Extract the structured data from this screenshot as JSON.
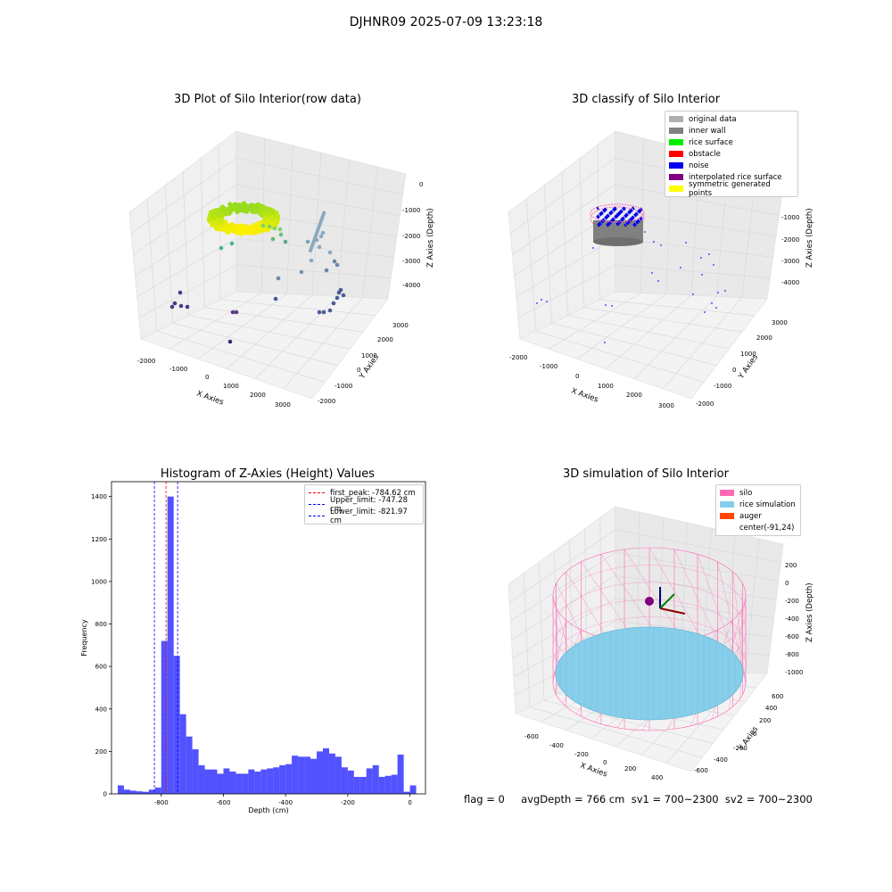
{
  "figure_title": "DJHNR09 2025-07-09 13:23:18",
  "panels": {
    "raw": {
      "title": "3D Plot of Silo Interior(row data)",
      "xlabel": "X Axies",
      "ylabel": "Y Axies",
      "zlabel": "Z Axies (Depth)",
      "xticks": [
        "-2000",
        "-1000",
        "0",
        "1000",
        "2000",
        "3000"
      ],
      "yticks": [
        "-2000",
        "-1000",
        "0",
        "1000",
        "2000",
        "3000"
      ],
      "zticks": [
        "0",
        "-1000",
        "-2000",
        "-3000",
        "-4000"
      ]
    },
    "classify": {
      "title": "3D classify of Silo Interior",
      "xlabel": "X Axies",
      "ylabel": "Y Axies",
      "zlabel": "Z Axies (Depth)",
      "xticks": [
        "-2000",
        "-1000",
        "0",
        "1000",
        "2000",
        "3000"
      ],
      "yticks": [
        "-2000",
        "-1000",
        "0",
        "1000",
        "2000",
        "3000"
      ],
      "zticks": [
        "-1000",
        "-2000",
        "-3000",
        "-4000"
      ],
      "legend": [
        {
          "label": "original data",
          "color": "#b0b0b0"
        },
        {
          "label": "inner wall",
          "color": "#808080"
        },
        {
          "label": "rice surface",
          "color": "#00ee00"
        },
        {
          "label": "obstacle",
          "color": "#ff0000"
        },
        {
          "label": "noise",
          "color": "#0000ee"
        },
        {
          "label": "interpolated rice surface",
          "color": "#800080"
        },
        {
          "label": "symmetric generated points",
          "color": "#ffff00"
        }
      ]
    },
    "simulation": {
      "title": "3D simulation of Silo Interior",
      "xlabel": "X Axies",
      "ylabel": "Y Axies",
      "zlabel": "Z Axies (Depth)",
      "xticks": [
        "-600",
        "-400",
        "-200",
        "0",
        "200",
        "400"
      ],
      "yticks": [
        "-600",
        "-400",
        "-200",
        "0",
        "200",
        "400",
        "600"
      ],
      "zticks": [
        "200",
        "0",
        "-200",
        "-400",
        "-600",
        "-800",
        "-1000"
      ],
      "legend": [
        {
          "label": "silo",
          "color": "#ff69b4"
        },
        {
          "label": "rice simulation",
          "color": "#87ceeb"
        },
        {
          "label": "auger",
          "color": "#ff4500"
        },
        {
          "label": "center(-91,24)",
          "color": ""
        }
      ]
    }
  },
  "chart_data": [
    {
      "type": "bar",
      "title": "Histogram of Z-Axies (Height) Values",
      "xlabel": "Depth (cm)",
      "ylabel": "Frequency",
      "xlim": [
        -960,
        50
      ],
      "ylim": [
        0,
        1470
      ],
      "xticks": [
        -800,
        -600,
        -400,
        -200,
        0
      ],
      "yticks": [
        0,
        200,
        400,
        600,
        800,
        1000,
        1200,
        1400
      ],
      "bar_color": "#0000ff",
      "bin_width": 20,
      "bin_starts": [
        -940,
        -920,
        -900,
        -880,
        -860,
        -840,
        -820,
        -800,
        -780,
        -760,
        -740,
        -720,
        -700,
        -680,
        -660,
        -640,
        -620,
        -600,
        -580,
        -560,
        -540,
        -520,
        -500,
        -480,
        -460,
        -440,
        -420,
        -400,
        -380,
        -360,
        -340,
        -320,
        -300,
        -280,
        -260,
        -240,
        -220,
        -200,
        -180,
        -160,
        -140,
        -120,
        -100,
        -80,
        -60,
        -40,
        -20,
        0
      ],
      "values": [
        40,
        20,
        15,
        12,
        10,
        20,
        30,
        720,
        1400,
        650,
        375,
        270,
        210,
        135,
        115,
        115,
        95,
        120,
        105,
        95,
        95,
        115,
        105,
        115,
        120,
        125,
        135,
        140,
        180,
        175,
        175,
        165,
        200,
        215,
        190,
        175,
        125,
        110,
        80,
        80,
        120,
        135,
        80,
        85,
        90,
        185,
        10,
        40
      ],
      "vlines": [
        {
          "label": "first_peak: -784.62 cm",
          "x": -784.62,
          "color": "#ff0000"
        },
        {
          "label": "Upper_limit: -747.28 cm",
          "x": -747.28,
          "color": "#0000ff"
        },
        {
          "label": "Lower_limit: -821.97 cm",
          "x": -821.97,
          "color": "#0000ff"
        }
      ]
    }
  ],
  "status_text": "flag = 0     avgDepth = 766 cm  sv1 = 700~2300  sv2 = 700~2300"
}
